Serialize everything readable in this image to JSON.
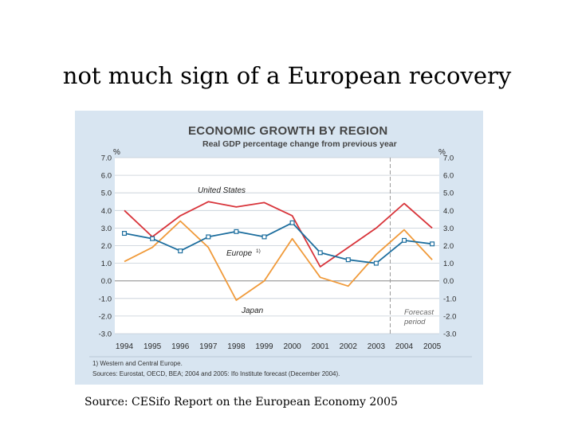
{
  "slide": {
    "title": "not much sign of a European recovery",
    "source": "Source: CESifo Report on the European Economy 2005"
  },
  "chart_data": {
    "type": "line",
    "title": "ECONOMIC GROWTH BY REGION",
    "subtitle": "Real GDP percentage change from previous year",
    "y_unit_left": "%",
    "y_unit_right": "%",
    "ylim": [
      -3.0,
      7.0
    ],
    "yticks": [
      "7.0",
      "6.0",
      "5.0",
      "4.0",
      "3.0",
      "2.0",
      "1.0",
      "0.0",
      "-1.0",
      "-2.0",
      "-3.0"
    ],
    "ytick_values": [
      7,
      6,
      5,
      4,
      3,
      2,
      1,
      0,
      -1,
      -2,
      -3
    ],
    "categories": [
      "1994",
      "1995",
      "1996",
      "1997",
      "1998",
      "1999",
      "2000",
      "2001",
      "2002",
      "2003",
      "2004",
      "2005"
    ],
    "grid": true,
    "series": [
      {
        "name": "United States",
        "color": "#d8343a",
        "marker": "none",
        "values": [
          4.0,
          2.5,
          3.7,
          4.5,
          4.2,
          4.45,
          3.7,
          0.8,
          1.9,
          3.0,
          4.4,
          3.0
        ]
      },
      {
        "name": "Europe",
        "color": "#1d6e9e",
        "marker": "square",
        "values": [
          2.7,
          2.4,
          1.7,
          2.5,
          2.8,
          2.5,
          3.3,
          1.6,
          1.2,
          1.0,
          2.3,
          2.1
        ]
      },
      {
        "name": "Japan",
        "color": "#f09a3a",
        "marker": "none",
        "values": [
          1.1,
          1.9,
          3.4,
          1.9,
          -1.1,
          0.0,
          2.4,
          0.2,
          -0.3,
          1.5,
          2.9,
          1.2
        ]
      }
    ],
    "series_labels": {
      "us": "United States",
      "europe": "Europe",
      "europe_superscript": "1)",
      "japan": "Japan"
    },
    "forecast": {
      "start_after": "2003",
      "label_line1": "Forecast",
      "label_line2": "period"
    },
    "footnote": "1) Western and Central Europe.",
    "sources": "Sources: Eurostat, OECD, BEA; 2004 and 2005: Ifo Institute forecast (December 2004).",
    "colors": {
      "panel_bg": "#d8e5f1",
      "plot_bg": "#ffffff",
      "axis_text": "#2a2a2a",
      "title": "#333333"
    }
  }
}
